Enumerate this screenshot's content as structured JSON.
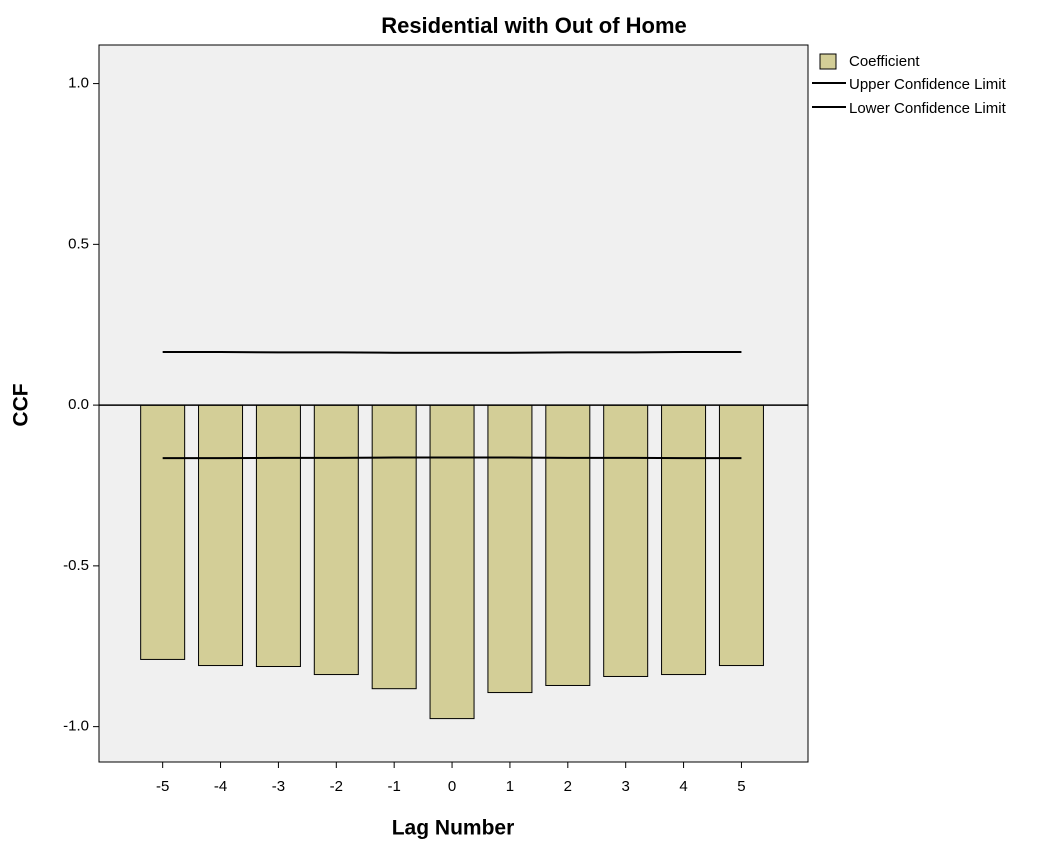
{
  "chart_data": {
    "type": "bar",
    "title": "Residential with Out of Home",
    "x_label": "Lag Number",
    "y_label": "CCF",
    "x": [
      -5,
      -4,
      -3,
      -2,
      -1,
      0,
      1,
      2,
      3,
      4,
      5
    ],
    "xlim": [
      -6.1,
      6.15
    ],
    "xticks": [
      -5,
      -4,
      -3,
      -2,
      -1,
      0,
      1,
      2,
      3,
      4,
      5
    ],
    "ylim": [
      -1.11,
      1.12
    ],
    "yticks": [
      {
        "value": -1,
        "label": "-1.0"
      },
      {
        "value": -0.5,
        "label": "-0.5"
      },
      {
        "value": 0,
        "label": "0.0"
      },
      {
        "value": 0.5,
        "label": "0.5"
      },
      {
        "value": 1,
        "label": "1.0"
      }
    ],
    "series": [
      {
        "name": "Coefficient",
        "color": "#d3ce97",
        "values": [
          -0.791,
          -0.81,
          -0.813,
          -0.838,
          -0.882,
          -0.975,
          -0.894,
          -0.872,
          -0.844,
          -0.838,
          -0.81
        ]
      },
      {
        "name": "Upper Confidence Limit",
        "color": "#000000",
        "values": [
          0.165,
          0.165,
          0.164,
          0.164,
          0.163,
          0.163,
          0.163,
          0.164,
          0.164,
          0.165,
          0.165
        ]
      },
      {
        "name": "Lower Confidence Limit",
        "color": "#000000",
        "values": [
          -0.165,
          -0.165,
          -0.164,
          -0.164,
          -0.163,
          -0.163,
          -0.163,
          -0.164,
          -0.164,
          -0.165,
          -0.165
        ]
      }
    ],
    "legend": "outside-right"
  }
}
